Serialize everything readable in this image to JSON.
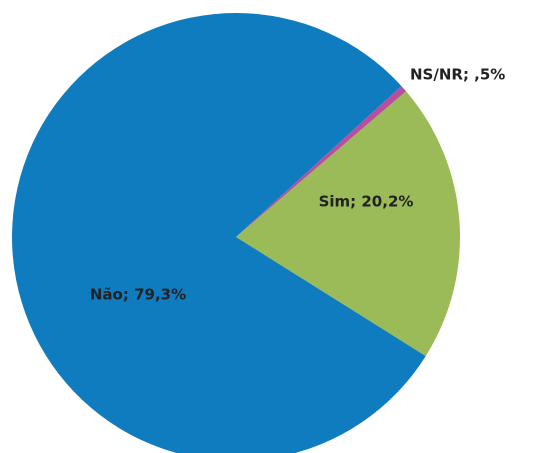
{
  "chart_data": {
    "type": "pie",
    "values": [
      0.5,
      20.2,
      79.3
    ],
    "value_labels": [
      "NS/NR; ,5%",
      "Sim; 20,2%",
      "Não; 79,3%"
    ],
    "colors": [
      "#b84f9e",
      "#9bbb59",
      "#0f7cc0"
    ]
  }
}
